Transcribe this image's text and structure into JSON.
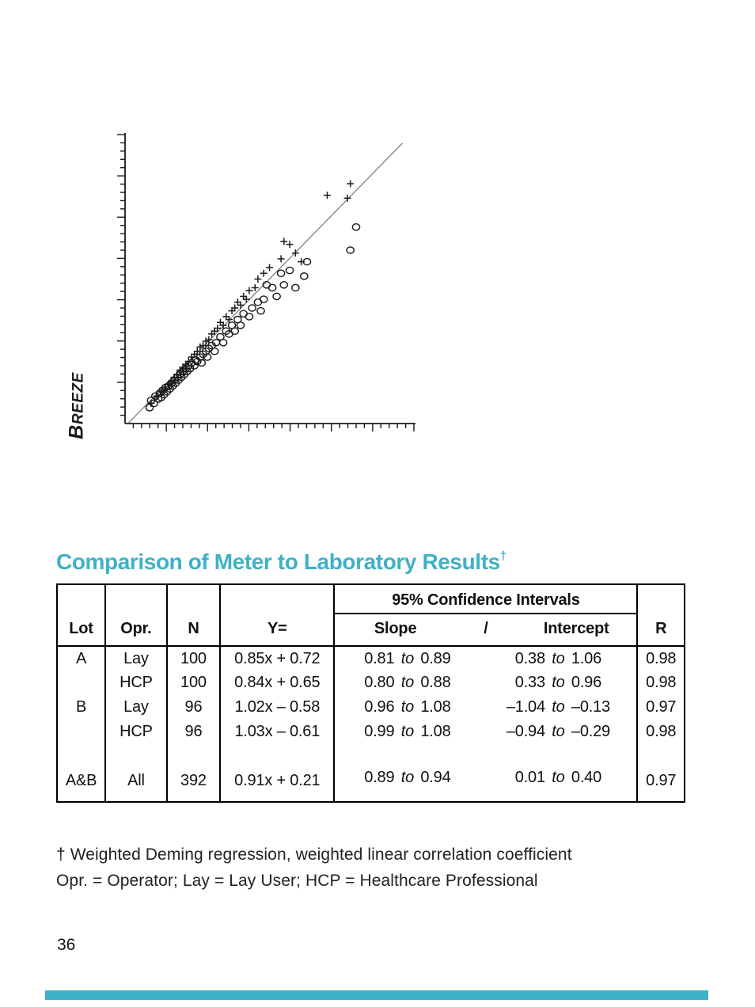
{
  "colors": {
    "accent": "#3EB1C8",
    "ink": "#1a1a1a",
    "line": "#777777"
  },
  "heading": {
    "text": "Comparison of Meter to Laboratory Results",
    "dagger": "†"
  },
  "chart": {
    "ylabel_cap": "B",
    "ylabel_rest": "REEZE"
  },
  "chart_data": {
    "type": "scatter",
    "title": "",
    "xlabel": "",
    "ylabel": "BREEZE",
    "xlim": [
      0,
      100
    ],
    "ylim": [
      0,
      100
    ],
    "tick_labels": "none (unlabeled minor/major ticks, majors every 5th)",
    "grid": false,
    "legend": "none",
    "identity_line": {
      "from": [
        1,
        0
      ],
      "to": [
        96,
        97
      ]
    },
    "series": [
      {
        "name": "circle-markers",
        "marker": "circle",
        "points": [
          [
            8.5,
            5.5
          ],
          [
            9,
            8
          ],
          [
            10,
            7
          ],
          [
            10.5,
            9.5
          ],
          [
            11.5,
            8.5
          ],
          [
            12,
            10.5
          ],
          [
            12.5,
            9
          ],
          [
            13,
            11.5
          ],
          [
            13.5,
            10
          ],
          [
            14,
            12.5
          ],
          [
            14.5,
            11
          ],
          [
            15,
            13
          ],
          [
            15.5,
            12
          ],
          [
            16,
            14
          ],
          [
            16.5,
            13
          ],
          [
            17,
            15
          ],
          [
            17.5,
            14
          ],
          [
            18,
            16
          ],
          [
            18.5,
            15
          ],
          [
            19,
            17
          ],
          [
            19.5,
            16
          ],
          [
            20,
            18
          ],
          [
            20.5,
            17
          ],
          [
            21,
            19
          ],
          [
            21.5,
            18
          ],
          [
            22,
            20
          ],
          [
            22.5,
            19
          ],
          [
            23,
            21
          ],
          [
            24,
            20
          ],
          [
            24.5,
            22
          ],
          [
            25,
            21.5
          ],
          [
            26,
            23
          ],
          [
            26.5,
            21
          ],
          [
            27,
            24
          ],
          [
            28,
            25
          ],
          [
            28.5,
            23
          ],
          [
            29,
            26
          ],
          [
            30,
            27
          ],
          [
            31,
            25
          ],
          [
            31.5,
            28
          ],
          [
            33,
            30
          ],
          [
            34,
            28
          ],
          [
            35,
            32
          ],
          [
            36,
            31
          ],
          [
            37,
            34
          ],
          [
            38,
            32
          ],
          [
            39,
            36
          ],
          [
            40,
            34
          ],
          [
            41,
            38
          ],
          [
            43,
            37
          ],
          [
            44,
            40
          ],
          [
            46,
            42
          ],
          [
            47,
            39
          ],
          [
            48,
            43
          ],
          [
            49,
            48
          ],
          [
            51,
            47
          ],
          [
            52.5,
            44
          ],
          [
            54,
            52
          ],
          [
            55,
            48
          ],
          [
            57,
            53
          ],
          [
            59,
            47
          ],
          [
            62,
            51
          ],
          [
            63,
            56
          ],
          [
            78,
            60
          ],
          [
            80,
            68
          ]
        ]
      },
      {
        "name": "plus-markers",
        "marker": "plus",
        "points": [
          [
            9,
            7
          ],
          [
            11,
            9.5
          ],
          [
            12.5,
            11
          ],
          [
            14,
            12
          ],
          [
            15,
            13.5
          ],
          [
            16,
            14.5
          ],
          [
            17,
            16
          ],
          [
            18,
            17
          ],
          [
            19,
            18.5
          ],
          [
            20,
            19.5
          ],
          [
            21,
            20.5
          ],
          [
            22,
            21.5
          ],
          [
            23,
            23
          ],
          [
            24,
            24
          ],
          [
            25,
            25
          ],
          [
            26,
            26.5
          ],
          [
            27,
            27
          ],
          [
            28,
            28.5
          ],
          [
            29,
            29
          ],
          [
            30,
            31
          ],
          [
            31,
            32
          ],
          [
            32,
            33
          ],
          [
            33,
            35
          ],
          [
            34,
            34
          ],
          [
            35,
            37
          ],
          [
            36,
            36
          ],
          [
            37,
            39
          ],
          [
            38,
            40
          ],
          [
            39,
            42
          ],
          [
            40,
            41
          ],
          [
            41,
            44
          ],
          [
            42,
            43
          ],
          [
            43,
            46
          ],
          [
            45,
            47
          ],
          [
            46,
            50
          ],
          [
            48,
            52
          ],
          [
            50,
            54
          ],
          [
            54,
            57
          ],
          [
            55,
            63
          ],
          [
            57,
            62
          ],
          [
            59,
            59
          ],
          [
            61,
            56
          ],
          [
            70,
            79
          ],
          [
            77,
            78
          ],
          [
            78,
            83
          ]
        ]
      }
    ]
  },
  "table": {
    "headers": {
      "lot": "Lot",
      "opr": "Opr.",
      "n": "N",
      "y": "Y=",
      "ci": "95% Confidence Intervals",
      "slope": "Slope",
      "slash": "/",
      "intercept": "Intercept",
      "r": "R"
    },
    "to_word": "to",
    "rows": [
      {
        "lot": "A",
        "opr": "Lay",
        "n": "100",
        "y": "0.85x + 0.72",
        "slope": [
          "0.81",
          "0.89"
        ],
        "intercept": [
          "0.38",
          "1.06"
        ],
        "r": "0.98"
      },
      {
        "lot": "",
        "opr": "HCP",
        "n": "100",
        "y": "0.84x + 0.65",
        "slope": [
          "0.80",
          "0.88"
        ],
        "intercept": [
          "0.33",
          "0.96"
        ],
        "r": "0.98"
      },
      {
        "lot": "B",
        "opr": "Lay",
        "n": "96",
        "y": "1.02x – 0.58",
        "slope": [
          "0.96",
          "1.08"
        ],
        "intercept": [
          "–1.04",
          "–0.13"
        ],
        "r": "0.97"
      },
      {
        "lot": "",
        "opr": "HCP",
        "n": "96",
        "y": "1.03x – 0.61",
        "slope": [
          "0.99",
          "1.08"
        ],
        "intercept": [
          "–0.94",
          "–0.29"
        ],
        "r": "0.98"
      },
      {
        "spacer": true
      },
      {
        "lot": "A&B",
        "opr": "All",
        "n": "392",
        "y": "0.91x + 0.21",
        "slope": [
          "0.89",
          "0.94"
        ],
        "intercept": [
          "0.01",
          "0.40"
        ],
        "r": "0.97"
      }
    ]
  },
  "footnote": {
    "line1": "† Weighted Deming regression, weighted linear correlation coefficient",
    "line2": "Opr. = Operator; Lay = Lay User; HCP = Healthcare Professional"
  },
  "page": {
    "number": "36"
  }
}
